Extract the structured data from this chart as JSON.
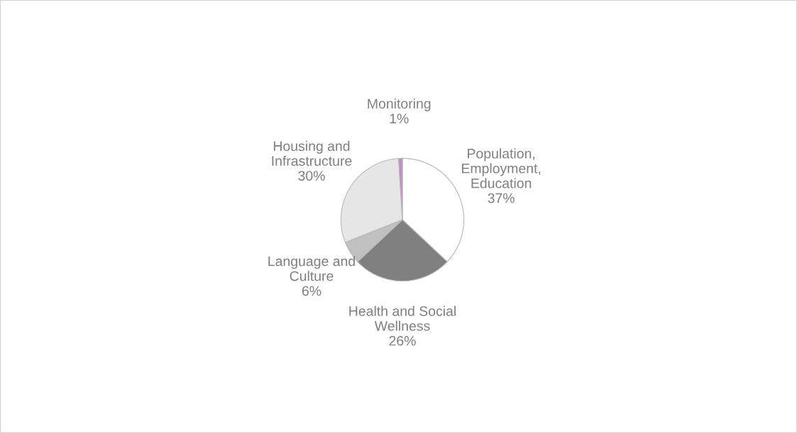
{
  "chart_data": {
    "type": "pie",
    "categories": [
      "Population,\nEmployment,\nEducation",
      "Health and Social\nWellness",
      "Language and\nCulture",
      "Housing and\nInfrastructure",
      "Monitoring"
    ],
    "values": [
      37,
      26,
      6,
      30,
      1
    ],
    "value_labels": [
      "37%",
      "26%",
      "6%",
      "30%",
      "1%"
    ],
    "colors": [
      "#ffffff",
      "#808080",
      "#c0c0c0",
      "#e6e6e6",
      "#c88ac8"
    ],
    "legend": false
  }
}
